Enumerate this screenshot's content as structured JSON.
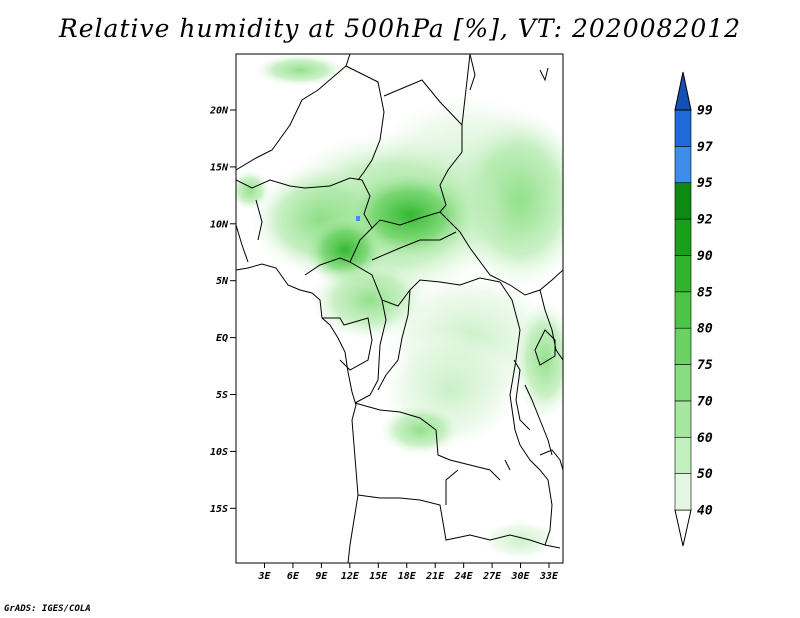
{
  "title": "Relative humidity at 500hPa [%], VT: 2020082012",
  "credit": "GrADS: IGES/COLA",
  "map": {
    "lat_labels": [
      "20N",
      "15N",
      "10N",
      "5N",
      "EQ",
      "5S",
      "10S",
      "15S"
    ],
    "lon_labels": [
      "3E",
      "6E",
      "9E",
      "12E",
      "15E",
      "18E",
      "21E",
      "24E",
      "27E",
      "30E",
      "33E"
    ]
  },
  "colorbar": {
    "levels": [
      "40",
      "50",
      "60",
      "70",
      "75",
      "80",
      "85",
      "90",
      "92",
      "95",
      "97",
      "99"
    ],
    "colors": [
      "#ffffff",
      "#e4f7e2",
      "#c4efc0",
      "#a6e79f",
      "#88dd80",
      "#6ad262",
      "#4cc546",
      "#2eb52c",
      "#18a01a",
      "#0d8a10",
      "#3d8eea",
      "#1e6ad8",
      "#1450b4"
    ]
  }
}
